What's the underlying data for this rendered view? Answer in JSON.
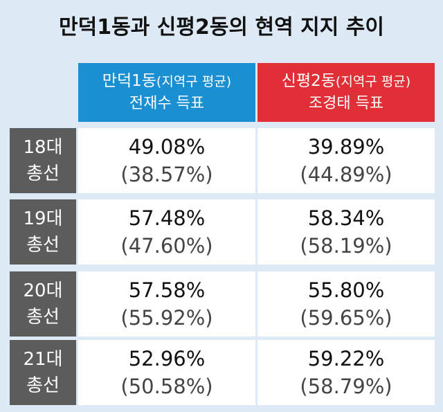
{
  "title": "만덕1동과 신평2동의 현역 지지 추이",
  "columns": [
    {
      "name_main": "만덕1동",
      "name_note": "(지역구 평균)",
      "subtitle": "전재수 득표",
      "color": "#1a8fd1"
    },
    {
      "name_main": "신평2동",
      "name_note": "(지역구 평균)",
      "subtitle": "조경태 득표",
      "color": "#e02f36"
    }
  ],
  "rows": [
    {
      "label1": "18대",
      "label2": "총선",
      "cells": [
        {
          "value": "49.08%",
          "avg": "(38.57%)"
        },
        {
          "value": "39.89%",
          "avg": "(44.89%)"
        }
      ]
    },
    {
      "label1": "19대",
      "label2": "총선",
      "cells": [
        {
          "value": "57.48%",
          "avg": "(47.60%)"
        },
        {
          "value": "58.34%",
          "avg": "(58.19%)"
        }
      ]
    },
    {
      "label1": "20대",
      "label2": "총선",
      "cells": [
        {
          "value": "57.58%",
          "avg": "(55.92%)"
        },
        {
          "value": "55.80%",
          "avg": "(59.65%)"
        }
      ]
    },
    {
      "label1": "21대",
      "label2": "총선",
      "cells": [
        {
          "value": "52.96%",
          "avg": "(50.58%)"
        },
        {
          "value": "59.22%",
          "avg": "(58.79%)"
        }
      ]
    }
  ],
  "chart_data": {
    "type": "table",
    "title": "만덕1동과 신평2동의 현역 지지 추이",
    "columns": [
      "만덕1동(지역구 평균) 전재수 득표",
      "신평2동(지역구 평균) 조경태 득표"
    ],
    "row_labels": [
      "18대 총선",
      "19대 총선",
      "20대 총선",
      "21대 총선"
    ],
    "series": [
      {
        "name": "만덕1동 전재수 득표",
        "values": [
          49.08,
          57.48,
          57.58,
          52.96
        ]
      },
      {
        "name": "만덕1동 지역구 평균",
        "values": [
          38.57,
          47.6,
          55.92,
          50.58
        ]
      },
      {
        "name": "신평2동 조경태 득표",
        "values": [
          39.89,
          58.34,
          55.8,
          59.22
        ]
      },
      {
        "name": "신평2동 지역구 평균",
        "values": [
          44.89,
          58.19,
          59.65,
          58.79
        ]
      }
    ]
  }
}
